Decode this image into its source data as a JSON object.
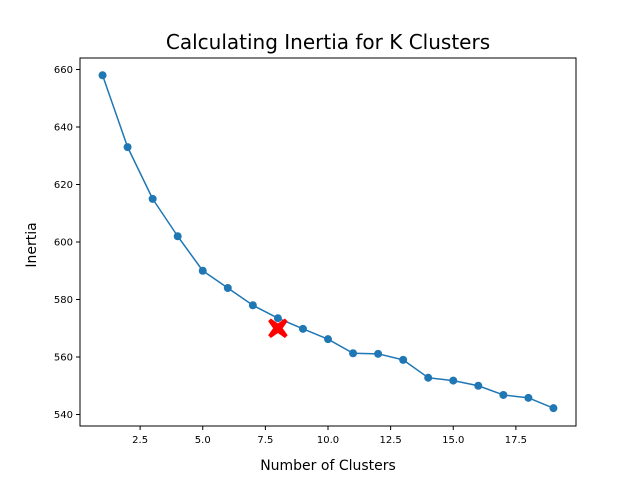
{
  "chart_data": {
    "type": "line",
    "title": "Calculating Inertia for K Clusters",
    "xlabel": "Number of Clusters",
    "ylabel": "Inertia",
    "xlim": [
      0.1,
      19.9
    ],
    "ylim": [
      536,
      664
    ],
    "xticks": [
      2.5,
      5.0,
      7.5,
      10.0,
      12.5,
      15.0,
      17.5
    ],
    "xtick_labels": [
      "2.5",
      "5.0",
      "7.5",
      "10.0",
      "12.5",
      "15.0",
      "17.5"
    ],
    "yticks": [
      540,
      560,
      580,
      600,
      620,
      640,
      660
    ],
    "ytick_labels": [
      "540",
      "560",
      "580",
      "600",
      "620",
      "640",
      "660"
    ],
    "grid": false,
    "series": [
      {
        "color": "#1f77b4",
        "marker": "circle",
        "x": [
          1,
          2,
          3,
          4,
          5,
          6,
          7,
          8,
          9,
          10,
          11,
          12,
          13,
          14,
          15,
          16,
          17,
          18,
          19
        ],
        "values": [
          658,
          633,
          615,
          602,
          590,
          584,
          578,
          573.5,
          569.8,
          566.2,
          561.3,
          561.1,
          559.0,
          552.8,
          551.8,
          550.0,
          546.8,
          545.8,
          542.2
        ]
      }
    ],
    "highlight": {
      "x": 8,
      "y": 570,
      "marker": "X",
      "color": "#ff0000"
    }
  }
}
